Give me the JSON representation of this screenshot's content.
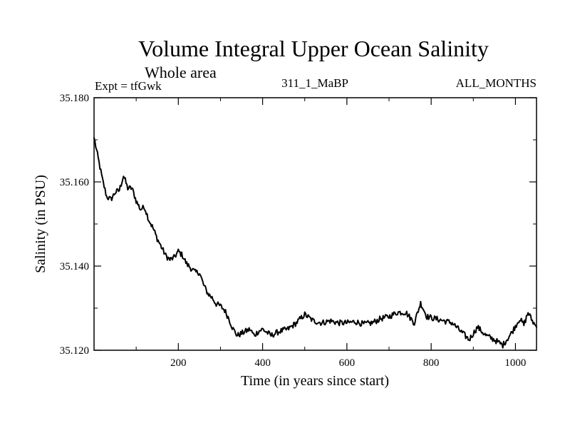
{
  "chart_data": {
    "type": "line",
    "title": "Volume Integral Upper Ocean Salinity",
    "subtitle": "Whole area",
    "experiment": "Expt = tfGwk",
    "run_label": "311_1_MaBP",
    "months_label": "ALL_MONTHS",
    "xlabel": "Time (in years since start)",
    "ylabel": "Salinity (in PSU)",
    "xlim": [
      0,
      1050
    ],
    "ylim": [
      35.12,
      35.18
    ],
    "x_ticks": [
      200,
      400,
      600,
      800,
      1000
    ],
    "x_tick_labels": [
      "200",
      "400",
      "600",
      "800",
      "1000"
    ],
    "y_ticks": [
      35.12,
      35.14,
      35.16,
      35.18
    ],
    "y_tick_labels": [
      "35.120",
      "35.140",
      "35.160",
      "35.180"
    ],
    "series": [
      {
        "name": "Salinity",
        "color": "#000000",
        "x": [
          0,
          10,
          20,
          30,
          40,
          50,
          60,
          70,
          80,
          90,
          100,
          110,
          120,
          130,
          140,
          150,
          160,
          170,
          180,
          190,
          200,
          210,
          220,
          230,
          240,
          250,
          260,
          270,
          280,
          290,
          300,
          310,
          320,
          330,
          340,
          350,
          360,
          370,
          380,
          390,
          400,
          420,
          440,
          460,
          480,
          500,
          520,
          540,
          560,
          580,
          600,
          620,
          640,
          660,
          680,
          700,
          720,
          740,
          760,
          775,
          790,
          810,
          830,
          850,
          870,
          890,
          910,
          930,
          950,
          970,
          990,
          1010,
          1020,
          1030,
          1040,
          1050
        ],
        "values": [
          35.1705,
          35.1655,
          35.1605,
          35.1565,
          35.1558,
          35.1575,
          35.158,
          35.1615,
          35.1585,
          35.1585,
          35.1555,
          35.1535,
          35.154,
          35.151,
          35.149,
          35.1465,
          35.1445,
          35.1425,
          35.1415,
          35.142,
          35.1435,
          35.1425,
          35.1405,
          35.1395,
          35.1385,
          35.1385,
          35.1355,
          35.1335,
          35.1325,
          35.131,
          35.1305,
          35.1295,
          35.1275,
          35.125,
          35.1235,
          35.124,
          35.1245,
          35.125,
          35.1235,
          35.1245,
          35.125,
          35.1235,
          35.1245,
          35.125,
          35.1265,
          35.1285,
          35.127,
          35.1265,
          35.127,
          35.1265,
          35.1265,
          35.1268,
          35.1262,
          35.1265,
          35.1275,
          35.128,
          35.129,
          35.129,
          35.1265,
          35.1312,
          35.128,
          35.1275,
          35.127,
          35.1265,
          35.1245,
          35.1225,
          35.1255,
          35.1235,
          35.1225,
          35.1212,
          35.124,
          35.1275,
          35.126,
          35.129,
          35.127,
          35.1255
        ]
      }
    ]
  }
}
